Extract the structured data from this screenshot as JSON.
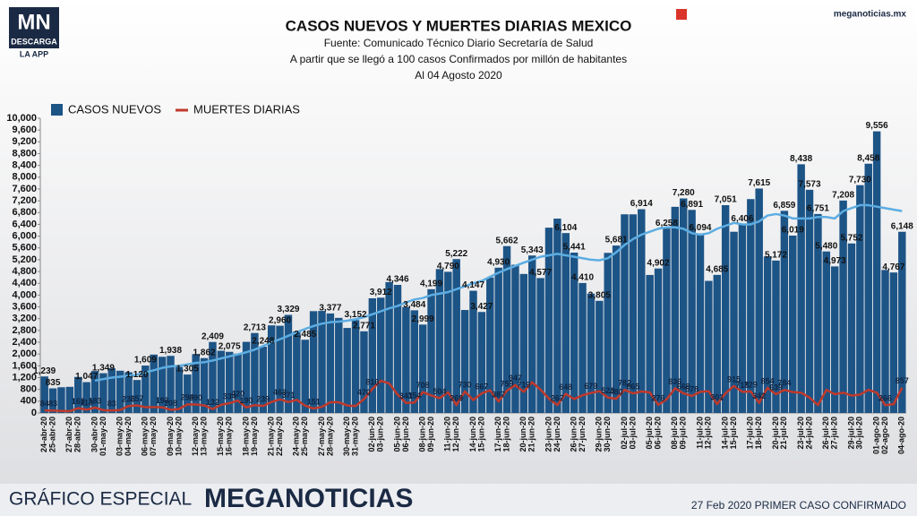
{
  "header": {
    "logo": "MN",
    "logo_sub": "DESCARGA",
    "logo_app": "LA APP",
    "site": "meganoticias.mx"
  },
  "footer": {
    "left": "GRÁFICO ESPECIAL",
    "brand": "MEGANOTICIAS",
    "right": "27 Feb 2020 PRIMER CASO CONFIRMADO"
  },
  "chart_data": {
    "type": "bar",
    "title": "CASOS NUEVOS Y MUERTES DIARIAS MEXICO",
    "subtitle": [
      "Fuente: Comunicado Técnico Diario Secretaría de Salud",
      "A partir que se llegó a 100 casos Confirmados por millón de habitantes",
      "Al 04 Agosto 2020"
    ],
    "categories": [
      "24-abr-20",
      "25-abr-20",
      null,
      "27-abr-20",
      "28-abr-20",
      null,
      "30-abr-20",
      "01-may-20",
      null,
      "03-may-20",
      "04-may-20",
      null,
      "06-may-20",
      "07-may-20",
      null,
      "09-may-20",
      "10-may-20",
      null,
      "12-may-20",
      "13-may-20",
      null,
      "15-may-20",
      "16-may-20",
      null,
      "18-may-20",
      "19-may-20",
      null,
      "21-may-20",
      "22-may-20",
      null,
      "24-may-20",
      "25-may-20",
      null,
      "27-may-20",
      "28-may-20",
      null,
      "30-may-20",
      "31-may-20",
      null,
      "02-jun-20",
      "03-jun-20",
      null,
      "05-jun-20",
      "06-jun-20",
      null,
      "08-jun-20",
      "09-jun-20",
      null,
      "11-jun-20",
      "12-jun-20",
      null,
      "14-jun-20",
      "15-jun-20",
      null,
      "17-jun-20",
      "18-jun-20",
      null,
      "20-jun-20",
      "21-jun-20",
      null,
      "23-jun-20",
      "24-jun-20",
      null,
      "26-jun-20",
      "27-jun-20",
      null,
      "29-jun-20",
      "30-jun-20",
      null,
      "02-jul-20",
      "03-jul-20",
      null,
      "05-jul-20",
      "06-jul-20",
      null,
      "08-jul-20",
      "09-jul-20",
      null,
      "11-jul-20",
      "12-jul-20",
      null,
      "14-jul-20",
      "15-jul-20",
      null,
      "17-jul-20",
      "18-jul-20",
      null,
      "20-jul-20",
      "21-jul-20",
      null,
      "23-jul-20",
      "24-jul-20",
      null,
      "26-jul-20",
      "27-jul-20",
      null,
      "29-jul-20",
      "30-jul-20",
      null,
      "01-ago-20",
      "02-ago-20",
      null,
      "04-ago-20"
    ],
    "series": [
      {
        "name": "CASOS NUEVOS",
        "type": "bar",
        "color": "#1d5486",
        "values": [
          1239,
          835,
          873,
          887,
          1223,
          1047,
          1425,
          1349,
          1515,
          1434,
          1383,
          1120,
          1609,
          1982,
          1906,
          1938,
          1562,
          1305,
          1997,
          1862,
          2409,
          2112,
          2075,
          2013,
          2414,
          2713,
          2248,
          2973,
          2960,
          3329,
          2764,
          2485,
          3455,
          3463,
          3377,
          3227,
          2885,
          3152,
          2771,
          3891,
          3912,
          4442,
          4346,
          3593,
          3484,
          2999,
          4199,
          4883,
          4790,
          5222,
          3494,
          4147,
          3427,
          4599,
          4930,
          5662,
          5030,
          4717,
          5343,
          4577,
          6288,
          6595,
          6104,
          5441,
          4410,
          4050,
          3805,
          5432,
          5681,
          6741,
          6740,
          6914,
          4683,
          4902,
          6258,
          6995,
          7280,
          6891,
          6094,
          4482,
          4685,
          7051,
          6149,
          6406,
          7257,
          7615,
          5311,
          5172,
          6859,
          6019,
          8438,
          7573,
          6751,
          5480,
          4973,
          7208,
          5752,
          7730,
          8458,
          9556,
          4853,
          4767,
          6148
        ],
        "value_labels": [
          "1,239",
          "835",
          null,
          null,
          null,
          "1,047",
          null,
          "1,349",
          null,
          null,
          null,
          "1,120",
          "1,609",
          null,
          null,
          "1,938",
          null,
          "1,305",
          null,
          "1,862",
          "2,409",
          null,
          "2,075",
          null,
          null,
          "2,713",
          "2,248",
          null,
          "2,960",
          "3,329",
          null,
          "2,485",
          null,
          null,
          "3,377",
          null,
          null,
          "3,152",
          "2,771",
          null,
          "3,912",
          null,
          "4,346",
          null,
          "3,484",
          "2,999",
          "4,199",
          null,
          "4,790",
          "5,222",
          null,
          "4,147",
          "3,427",
          null,
          "4,930",
          "5,662",
          null,
          null,
          "5,343",
          "4,577",
          null,
          null,
          "6,104",
          "5,441",
          "4,410",
          null,
          "3,805",
          null,
          "5,681",
          null,
          null,
          "6,914",
          null,
          "4,902",
          "6,258",
          null,
          "7,280",
          "6,891",
          "6,094",
          null,
          "4,685",
          "7,051",
          null,
          "6,406",
          null,
          "7,615",
          null,
          "5,172",
          "6,859",
          "6,019",
          "8,438",
          "7,573",
          "6,751",
          "5,480",
          "4,973",
          "7,208",
          "5,752",
          "7,730",
          "8,458",
          "9,556",
          null,
          "4,767",
          "6,148"
        ]
      },
      {
        "name": "MUERTES DIARIAS",
        "type": "line",
        "color": "#c0392b",
        "values": [
          84,
          83,
          70,
          60,
          163,
          113,
          183,
          95,
          83,
          104,
          236,
          257,
          197,
          199,
          193,
          108,
          136,
          294,
          290,
          257,
          132,
          278,
          334,
          420,
          190,
          267,
          239,
          374,
          463,
          371,
          447,
          248,
          151,
          207,
          364,
          363,
          256,
          237,
          470,
          816,
          1092,
          1000,
          625,
          341,
          354,
          708,
          596,
          504,
          703,
          269,
          730,
          439,
          667,
          770,
          387,
          759,
          947,
          719,
          1044,
          793,
          485,
          267,
          648,
          473,
          602,
          679,
          741,
          523,
          480,
          782,
          665,
          730,
          695,
          276,
          465,
          836,
          668,
          578,
          719,
          739,
          301,
          668,
          915,
          718,
          729,
          342,
          854,
          639,
          784,
          709,
          688,
          522,
          266,
          784,
          639,
          688,
          591,
          624,
          784,
          688,
          266,
          300,
          857
        ],
        "value_labels": [
          "84",
          "83",
          null,
          null,
          "163",
          "113",
          "183",
          null,
          "83",
          null,
          "236",
          "257",
          null,
          null,
          "193",
          "108",
          null,
          "294",
          "290",
          null,
          "132",
          null,
          "334",
          "420",
          "190",
          null,
          "239",
          null,
          "463",
          "371",
          null,
          null,
          "151",
          null,
          null,
          null,
          null,
          null,
          "470",
          "816",
          null,
          null,
          null,
          "341",
          "354",
          "708",
          null,
          "504",
          null,
          "269",
          "730",
          null,
          "667",
          null,
          "387",
          "759",
          "947",
          "719",
          null,
          null,
          null,
          "267",
          "648",
          null,
          null,
          "679",
          null,
          "523",
          "480",
          "782",
          "665",
          null,
          null,
          "276",
          null,
          "836",
          "668",
          "578",
          null,
          null,
          "301",
          null,
          "915",
          "718",
          "729",
          "342",
          "854",
          "639",
          "784",
          null,
          null,
          null,
          null,
          null,
          null,
          null,
          null,
          null,
          null,
          null,
          "266",
          null,
          "857"
        ]
      },
      {
        "type": "line",
        "color": "#5dade2",
        "values": [
          null,
          null,
          null,
          null,
          null,
          null,
          1100,
          1150,
          1200,
          1230,
          1260,
          1300,
          1380,
          1450,
          1530,
          1580,
          1600,
          1650,
          1700,
          1720,
          1780,
          1850,
          1920,
          1990,
          2060,
          2150,
          2270,
          2400,
          2500,
          2620,
          2740,
          2850,
          2950,
          3030,
          3080,
          3100,
          3130,
          3180,
          3250,
          3350,
          3450,
          3550,
          3630,
          3750,
          3850,
          3900,
          4000,
          4050,
          4100,
          4200,
          4300,
          4400,
          4480,
          4620,
          4760,
          4880,
          4990,
          5100,
          5200,
          5300,
          5350,
          5400,
          5350,
          5300,
          5250,
          5200,
          5180,
          5250,
          5450,
          5700,
          5900,
          6050,
          6150,
          6250,
          6300,
          6300,
          6250,
          6100,
          6050,
          6100,
          6250,
          6350,
          6450,
          6400,
          6400,
          6500,
          6700,
          6750,
          6700,
          6600,
          6600,
          6600,
          6650,
          6650,
          6600,
          6850,
          6950,
          7050,
          7050,
          7000,
          6950,
          6900,
          6850
        ]
      }
    ],
    "ylim": [
      0,
      10000
    ],
    "yticks": [
      0,
      400,
      800,
      {
        "value": 1200,
        "label": "1,200"
      },
      {
        "value": 1600,
        "label": "1,600"
      },
      {
        "value": 2000,
        "label": "2,000"
      },
      {
        "value": 2400,
        "label": "2,400"
      },
      {
        "value": 2800,
        "label": "2,800"
      },
      {
        "value": 3200,
        "label": "3,200"
      },
      {
        "value": 3600,
        "label": "3,600"
      },
      {
        "value": 4000,
        "label": "4,000"
      },
      {
        "value": 4400,
        "label": "4,400"
      },
      {
        "value": 4800,
        "label": "4,800"
      },
      {
        "value": 5200,
        "label": "5,200"
      },
      {
        "value": 5600,
        "label": "5,600"
      },
      {
        "value": 6000,
        "label": "6,000"
      },
      {
        "value": 6400,
        "label": "6,400"
      },
      {
        "value": 6800,
        "label": "6,800"
      },
      {
        "value": 7200,
        "label": "7,200"
      },
      {
        "value": 7600,
        "label": "7,600"
      },
      {
        "value": 8000,
        "label": "8,000"
      },
      {
        "value": 8400,
        "label": "8,400"
      },
      {
        "value": 8800,
        "label": "8,800"
      },
      {
        "value": 9200,
        "label": "9,200"
      },
      {
        "value": 9600,
        "label": "9,600"
      },
      {
        "value": 10000,
        "label": "10,000"
      }
    ],
    "grid": false,
    "legend": "top-left"
  }
}
